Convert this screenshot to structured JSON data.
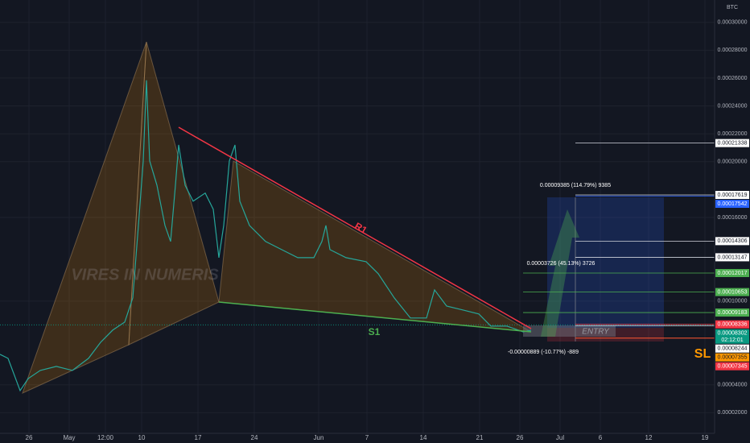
{
  "chart_data": {
    "type": "line",
    "unit": "BTC",
    "watermark": "VIRES IN NUMERIS",
    "x": [
      -8.6,
      -7.6,
      -6.1,
      -5.1,
      -3.6,
      -1.6,
      0.4,
      2.4,
      3.9,
      5.4,
      6.9,
      7.9,
      8.6,
      9.2,
      9.6,
      10,
      10.9,
      11.9,
      12.6,
      13.2,
      13.6,
      14.4,
      15.4,
      16.9,
      17.9,
      18.6,
      19.2,
      19.9,
      20.6,
      21.2,
      22.4,
      24.4,
      26.4,
      28.4,
      30.4,
      31.4,
      31.9,
      32.4,
      34.4,
      36.9,
      38.4,
      40.4,
      42.4,
      44.4,
      45.4,
      46.9,
      48.9,
      50.9,
      52.4,
      54.4,
      56.4,
      57.4
    ],
    "series": [
      {
        "color": "#26a69a",
        "values": [
          6.19e-05,
          5.9e-05,
          3.59e-05,
          4.45e-05,
          5.03e-05,
          5.32e-05,
          5.03e-05,
          5.9e-05,
          7.05e-05,
          7.92e-05,
          8.5e-05,
          0.0001023,
          0.0001543,
          0.0002006,
          0.0002584,
          0.0002006,
          0.0001832,
          0.0001543,
          0.0001428,
          0.0001832,
          0.0002121,
          0.0001832,
          0.0001717,
          0.0001775,
          0.0001659,
          0.0001312,
          0.0001543,
          0.0002006,
          0.0002121,
          0.0001717,
          0.0001543,
          0.0001428,
          0.000137,
          0.0001312,
          0.0001312,
          0.0001428,
          0.0001543,
          0.000137,
          0.0001312,
          0.0001283,
          0.0001197,
          0.0001023,
          8.79e-05,
          8.79e-05,
          0.0001081,
          9.65e-05,
          9.37e-05,
          9.08e-05,
          8.21e-05,
          8.21e-05,
          7.8e-05,
          7.92e-05
        ]
      }
    ],
    "xlim": [
      -8.6,
      80.2
    ],
    "xticks": [
      {
        "value": -5,
        "label": "26"
      },
      {
        "value": 0,
        "label": "May"
      },
      {
        "value": 4.5,
        "label": "12:00"
      },
      {
        "value": 9,
        "label": "10"
      },
      {
        "value": 16,
        "label": "17"
      },
      {
        "value": 23,
        "label": "24"
      },
      {
        "value": 31,
        "label": "Jun"
      },
      {
        "value": 37,
        "label": "7"
      },
      {
        "value": 44,
        "label": "14"
      },
      {
        "value": 51,
        "label": "21"
      },
      {
        "value": 56,
        "label": "26"
      },
      {
        "value": 61,
        "label": "Jul"
      },
      {
        "value": 66,
        "label": "6"
      },
      {
        "value": 72,
        "label": "12"
      },
      {
        "value": 79,
        "label": "19"
      }
    ],
    "ylim": [
      5.2e-06,
      0.000316
    ],
    "yticks": [
      {
        "value": 0.0003,
        "label": "0.00030000"
      },
      {
        "value": 0.00028,
        "label": "0.00028000"
      },
      {
        "value": 0.00026,
        "label": "0.00026000"
      },
      {
        "value": 0.00024,
        "label": "0.00024000"
      },
      {
        "value": 0.00022,
        "label": "0.00022000"
      },
      {
        "value": 0.0002,
        "label": "0.00020000"
      },
      {
        "value": 0.00016,
        "label": "0.00016000"
      },
      {
        "value": 0.0001,
        "label": "0.00010000"
      },
      {
        "value": 4e-05,
        "label": "0.00004000"
      },
      {
        "value": 2e-05,
        "label": "0.00002000"
      }
    ],
    "grid": true,
    "levels": [
      {
        "value": 0.00021338,
        "color": "#ffffff",
        "text_color": "#131722",
        "line": "#d1d4dc"
      },
      {
        "value": 0.00017619,
        "color": "#ffffff",
        "text_color": "#131722",
        "line": "#d1d4dc"
      },
      {
        "value": 0.00017542,
        "color": "#2962ff",
        "text_color": "#ffffff",
        "line": "#2962ff"
      },
      {
        "value": 0.00014306,
        "color": "#ffffff",
        "text_color": "#131722",
        "line": "#d1d4dc"
      },
      {
        "value": 0.00013147,
        "color": "#ffffff",
        "text_color": "#131722",
        "line": "#d1d4dc"
      },
      {
        "value": 0.00012017,
        "color": "#4caf50",
        "text_color": "#ffffff",
        "line": "#4caf50"
      },
      {
        "value": 0.00010653,
        "color": "#4caf50",
        "text_color": "#ffffff",
        "line": "#4caf50"
      },
      {
        "value": 9.183e-05,
        "color": "#4caf50",
        "text_color": "#ffffff",
        "line": "#4caf50"
      },
      {
        "value": 8.336e-05,
        "color": "#f23645",
        "text_color": "#ffffff",
        "line": "#f23645"
      },
      {
        "value": 8.302e-05,
        "color": "#089981",
        "text_color": "#ffffff",
        "line": "#089981",
        "countdown": "02:12:01"
      },
      {
        "value": 8.244e-05,
        "color": "#ffffff",
        "text_color": "#131722",
        "line": "#d1d4dc"
      },
      {
        "value": 7.355e-05,
        "color": "#ff9800",
        "text_color": "#131722",
        "line": "#ff9800"
      },
      {
        "value": 7.345e-05,
        "color": "#f23645",
        "text_color": "#ffffff",
        "line": "#f23645"
      }
    ],
    "annotations": {
      "r1": "R1",
      "s1": "S1",
      "entry": "ENTRY",
      "sl": "SL",
      "target": "0.00009385 (114.79%) 9385",
      "mid": "0.00003726 (45.13%) 3726",
      "stop": "-0.00000889 (-10.77%) -889"
    }
  }
}
